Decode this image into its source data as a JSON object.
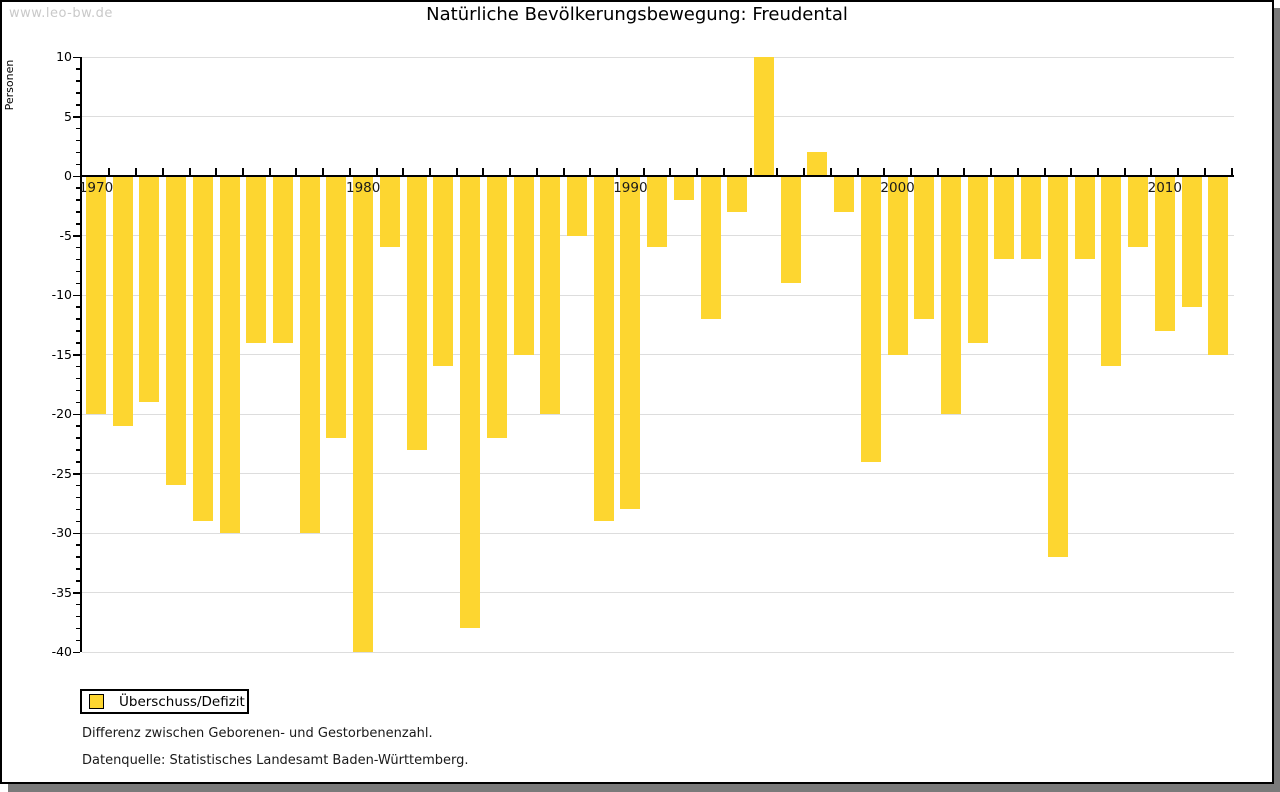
{
  "header": {
    "watermark": "www.leo-bw.de"
  },
  "chart_data": {
    "type": "bar",
    "title": "Natürliche Bevölkerungsbewegung: Freudental",
    "ylabel": "Personen",
    "xlabel": "",
    "grid": true,
    "legend_position": "bottom-left",
    "ylim": [
      -40,
      10
    ],
    "ytick_major_step": 5,
    "ytick_minor_step": 1,
    "ytick_labels": [
      "10",
      "5",
      "0",
      "-5",
      "-10",
      "-15",
      "-20",
      "-25",
      "-30",
      "-35",
      "-40"
    ],
    "x": [
      1970,
      1971,
      1972,
      1973,
      1974,
      1975,
      1976,
      1977,
      1978,
      1979,
      1980,
      1981,
      1982,
      1983,
      1984,
      1985,
      1986,
      1987,
      1988,
      1989,
      1990,
      1991,
      1992,
      1993,
      1994,
      1995,
      1996,
      1997,
      1998,
      1999,
      2000,
      2001,
      2002,
      2003,
      2004,
      2005,
      2006,
      2007,
      2008,
      2009,
      2010,
      2011,
      2012
    ],
    "values": [
      -20,
      -21,
      -19,
      -26,
      -29,
      -30,
      -14,
      -14,
      -30,
      -22,
      -40,
      -6,
      -23,
      -16,
      -38,
      -22,
      -15,
      -20,
      -5,
      -29,
      -28,
      -6,
      -2,
      -12,
      -3,
      10,
      -9,
      2,
      -3,
      -24,
      -15,
      -12,
      -20,
      -14,
      -7,
      -7,
      -32,
      -7,
      -16,
      -6,
      -13,
      -11,
      -15
    ],
    "series": [
      {
        "name": "Überschuss/Defizit",
        "color": "#FDD630"
      }
    ],
    "xtick_labels": [
      {
        "label": "1970",
        "index": 0
      },
      {
        "label": "1980",
        "index": 10
      },
      {
        "label": "1990",
        "index": 20
      },
      {
        "label": "2000",
        "index": 30
      },
      {
        "label": "2010",
        "index": 40
      }
    ],
    "bar_color": "#FDD630",
    "grid_color": "#DDDDDD",
    "axis_color": "#000000"
  },
  "legend": {
    "label": "Überschuss/Defizit",
    "swatch_color": "#FDD630"
  },
  "footer": {
    "note": "Differenz zwischen Geborenen- und Gestorbenenzahl.",
    "source": "Datenquelle: Statistisches Landesamt Baden-Württemberg."
  }
}
